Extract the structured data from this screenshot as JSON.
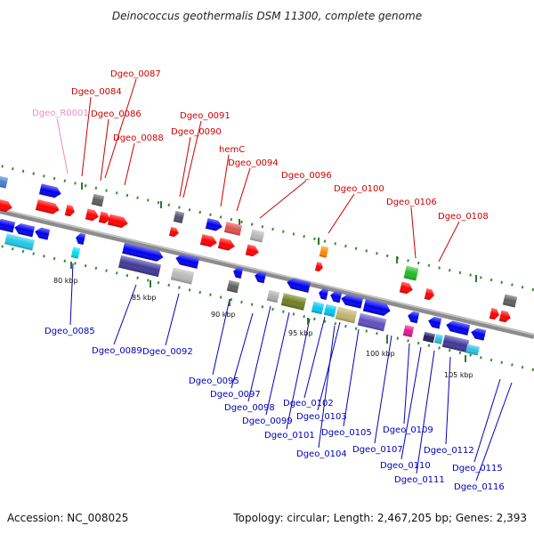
{
  "title": "Deinococcus geothermalis DSM 11300, complete genome",
  "footer": {
    "accession": "Accession: NC_008025",
    "summary": "Topology: circular; Length: 2,467,205 bp; Genes: 2,393"
  },
  "kbp_ticks": [
    "80 kbp",
    "85 kbp",
    "90 kbp",
    "95 kbp",
    "100 kbp",
    "105 kbp"
  ],
  "colors": {
    "forward_label": "#cc0000",
    "reverse_label": "#0000bb",
    "rna_label": "#f08cc0",
    "forward_gene": "#ff0000",
    "reverse_gene": "#0000ee",
    "backbone": "#8c8c8c",
    "tick_dots": "#3a8a3a"
  },
  "labels": {
    "top": [
      "Dgeo_0087",
      "Dgeo_0084",
      "Dgeo_R0001",
      "Dgeo_0086",
      "Dgeo_0088",
      "Dgeo_0091",
      "Dgeo_0090",
      "hemC",
      "Dgeo_0094",
      "Dgeo_0096",
      "Dgeo_0100",
      "Dgeo_0106",
      "Dgeo_0108"
    ],
    "bottom": [
      "Dgeo_0085",
      "Dgeo_0089",
      "Dgeo_0092",
      "Dgeo_0095",
      "Dgeo_0097",
      "Dgeo_0098",
      "Dgeo_0099",
      "Dgeo_0101",
      "Dgeo_0102",
      "Dgeo_0103",
      "Dgeo_0104",
      "Dgeo_0105",
      "Dgeo_0107",
      "Dgeo_0109",
      "Dgeo_0110",
      "Dgeo_0111",
      "Dgeo_0112",
      "Dgeo_0115",
      "Dgeo_0116"
    ]
  }
}
